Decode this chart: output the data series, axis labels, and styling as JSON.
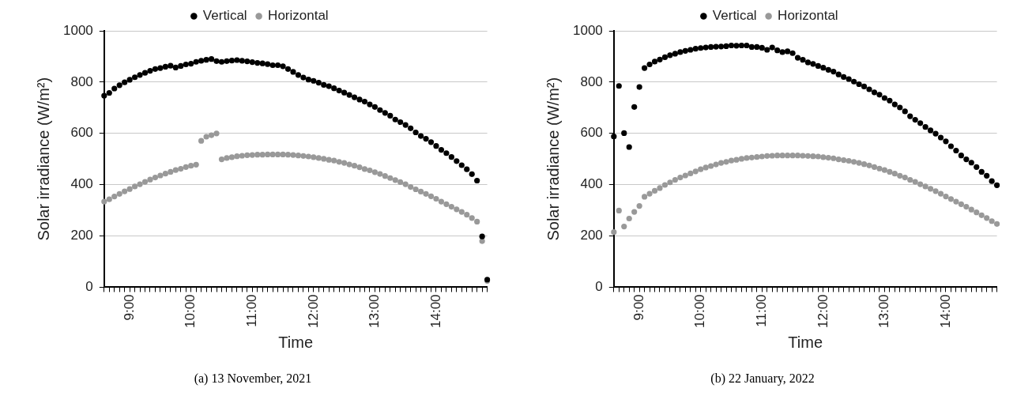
{
  "chart_data": [
    {
      "type": "scatter",
      "xlabel": "Time",
      "ylabel": "Solar irradiance (W/m²)",
      "annotations": [
        "(a) 13 November, 2021"
      ],
      "categories": [
        null,
        null,
        null,
        null,
        null,
        "9:00",
        null,
        null,
        null,
        null,
        null,
        null,
        null,
        null,
        null,
        null,
        null,
        "10:00",
        null,
        null,
        null,
        null,
        null,
        null,
        null,
        null,
        null,
        null,
        null,
        "11:00",
        null,
        null,
        null,
        null,
        null,
        null,
        null,
        null,
        null,
        null,
        null,
        "12:00",
        null,
        null,
        null,
        null,
        null,
        null,
        null,
        null,
        null,
        null,
        null,
        "13:00",
        null,
        null,
        null,
        null,
        null,
        null,
        null,
        null,
        null,
        null,
        null,
        "14:00",
        null,
        null,
        null,
        null,
        null,
        null,
        null,
        null,
        null,
        null
      ],
      "series": [
        {
          "name": "Vertical",
          "color": "#000000",
          "values": [
            747,
            758,
            775,
            788,
            799,
            809,
            819,
            828,
            836,
            844,
            851,
            855,
            860,
            864,
            857,
            863,
            869,
            872,
            879,
            883,
            887,
            890,
            882,
            879,
            882,
            884,
            886,
            883,
            881,
            878,
            875,
            873,
            870,
            866,
            866,
            862,
            851,
            840,
            828,
            818,
            810,
            805,
            798,
            789,
            784,
            776,
            767,
            759,
            750,
            741,
            732,
            724,
            713,
            703,
            691,
            680,
            669,
            654,
            644,
            633,
            620,
            604,
            590,
            579,
            566,
            551,
            536,
            523,
            508,
            492,
            476,
            460,
            441,
            416,
            198,
            30
          ]
        },
        {
          "name": "Horizontal",
          "color": "#999999",
          "values": [
            334,
            343,
            354,
            364,
            374,
            383,
            393,
            402,
            411,
            420,
            428,
            436,
            443,
            450,
            457,
            462,
            469,
            474,
            478,
            571,
            587,
            593,
            600,
            499,
            504,
            507,
            511,
            513,
            515,
            516,
            517,
            517,
            518,
            518,
            518,
            518,
            517,
            516,
            514,
            512,
            510,
            507,
            504,
            501,
            497,
            494,
            489,
            485,
            479,
            474,
            468,
            461,
            456,
            449,
            442,
            434,
            426,
            418,
            410,
            402,
            391,
            382,
            373,
            364,
            355,
            345,
            334,
            324,
            314,
            304,
            294,
            283,
            270,
            256,
            180,
            25
          ]
        }
      ],
      "ylim": [
        0,
        1000
      ],
      "yticks": [
        0,
        200,
        400,
        600,
        800,
        1000
      ],
      "grid": "y",
      "legend": "top",
      "marker": "circle"
    },
    {
      "type": "scatter",
      "xlabel": "Time",
      "ylabel": "Solar irradiance (W/m²)",
      "annotations": [
        "(b) 22 January, 2022"
      ],
      "categories": [
        null,
        null,
        null,
        null,
        null,
        "9:00",
        null,
        null,
        null,
        null,
        null,
        null,
        null,
        null,
        null,
        null,
        null,
        "10:00",
        null,
        null,
        null,
        null,
        null,
        null,
        null,
        null,
        null,
        null,
        null,
        "11:00",
        null,
        null,
        null,
        null,
        null,
        null,
        null,
        null,
        null,
        null,
        null,
        "12:00",
        null,
        null,
        null,
        null,
        null,
        null,
        null,
        null,
        null,
        null,
        null,
        "13:00",
        null,
        null,
        null,
        null,
        null,
        null,
        null,
        null,
        null,
        null,
        null,
        "14:00",
        null,
        null,
        null,
        null,
        null,
        null,
        null,
        null,
        null,
        null
      ],
      "series": [
        {
          "name": "Vertical",
          "color": "#000000",
          "values": [
            588,
            785,
            601,
            547,
            703,
            781,
            855,
            869,
            880,
            888,
            897,
            905,
            911,
            917,
            922,
            926,
            930,
            933,
            935,
            937,
            938,
            939,
            940,
            943,
            942,
            943,
            943,
            937,
            937,
            934,
            926,
            935,
            924,
            917,
            920,
            913,
            895,
            887,
            877,
            871,
            863,
            856,
            848,
            841,
            830,
            820,
            812,
            802,
            792,
            783,
            772,
            760,
            751,
            738,
            728,
            713,
            701,
            686,
            667,
            653,
            640,
            625,
            612,
            599,
            584,
            569,
            550,
            533,
            514,
            499,
            486,
            469,
            450,
            435,
            414,
            398
          ]
        },
        {
          "name": "Horizontal",
          "color": "#999999",
          "values": [
            215,
            299,
            237,
            268,
            294,
            317,
            353,
            365,
            376,
            387,
            399,
            409,
            419,
            428,
            436,
            444,
            452,
            460,
            467,
            473,
            479,
            485,
            489,
            494,
            497,
            501,
            504,
            506,
            508,
            510,
            512,
            513,
            514,
            514,
            514,
            514,
            514,
            513,
            512,
            511,
            510,
            507,
            505,
            503,
            499,
            496,
            493,
            489,
            485,
            480,
            475,
            469,
            463,
            457,
            450,
            443,
            435,
            428,
            419,
            411,
            402,
            393,
            384,
            375,
            365,
            354,
            344,
            334,
            324,
            314,
            303,
            292,
            281,
            270,
            258,
            247
          ]
        }
      ],
      "ylim": [
        0,
        1000
      ],
      "yticks": [
        0,
        200,
        400,
        600,
        800,
        1000
      ],
      "grid": "y",
      "legend": "top",
      "marker": "circle"
    }
  ]
}
